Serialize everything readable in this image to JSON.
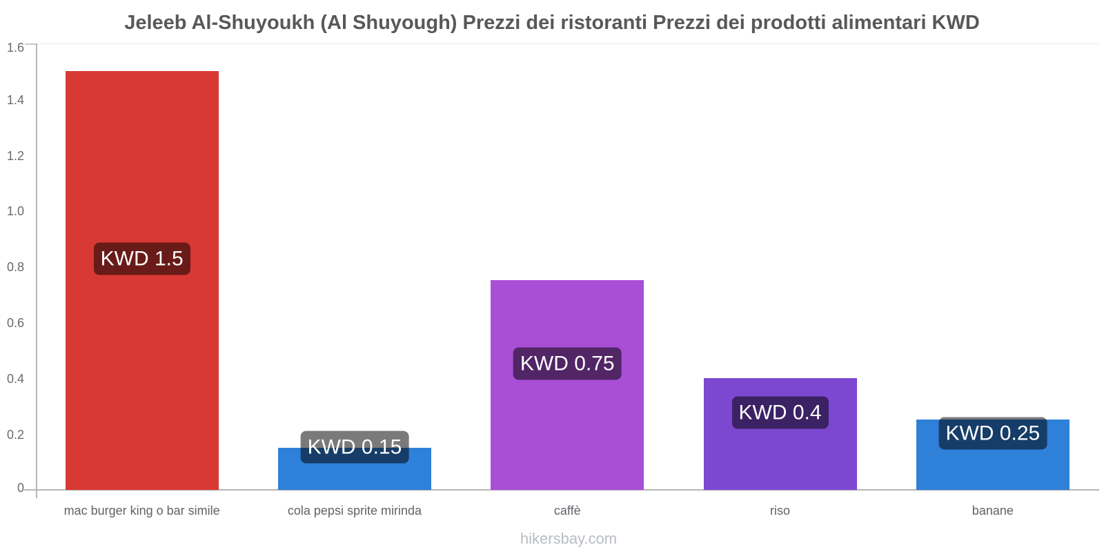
{
  "title": "Jeleeb Al-Shuyoukh (Al Shuyough) Prezzi dei ristoranti Prezzi dei prodotti alimentari KWD",
  "footer": "hikersbay.com",
  "chart_data": {
    "type": "bar",
    "title": "Jeleeb Al-Shuyoukh (Al Shuyough) Prezzi dei ristoranti Prezzi dei prodotti alimentari KWD",
    "categories": [
      "mac burger king o bar simile",
      "cola pepsi sprite mirinda",
      "caffè",
      "riso",
      "banane"
    ],
    "values": [
      1.5,
      0.15,
      0.75,
      0.4,
      0.25
    ],
    "value_labels": [
      "KWD 1.5",
      "KWD 0.15",
      "KWD 0.75",
      "KWD 0.4",
      "KWD 0.25"
    ],
    "bar_colors": [
      "#d93934",
      "#2f80d9",
      "#a94fd6",
      "#7c48d1",
      "#2f80d9"
    ],
    "value_label_bg": "rgba(0,0,0,0.52)",
    "xlabel": "",
    "ylabel": "",
    "ylim": [
      0,
      1.6
    ],
    "yticks": [
      0,
      0.2,
      0.4,
      0.6,
      0.8,
      1.0,
      1.2,
      1.4,
      1.6
    ],
    "ytick_labels": [
      "0",
      "0.2",
      "0.4",
      "0.6",
      "0.8",
      "1.0",
      "1.2",
      "1.4",
      "1.6"
    ],
    "grid": "top-line-only",
    "legend": "none",
    "currency": "KWD"
  }
}
